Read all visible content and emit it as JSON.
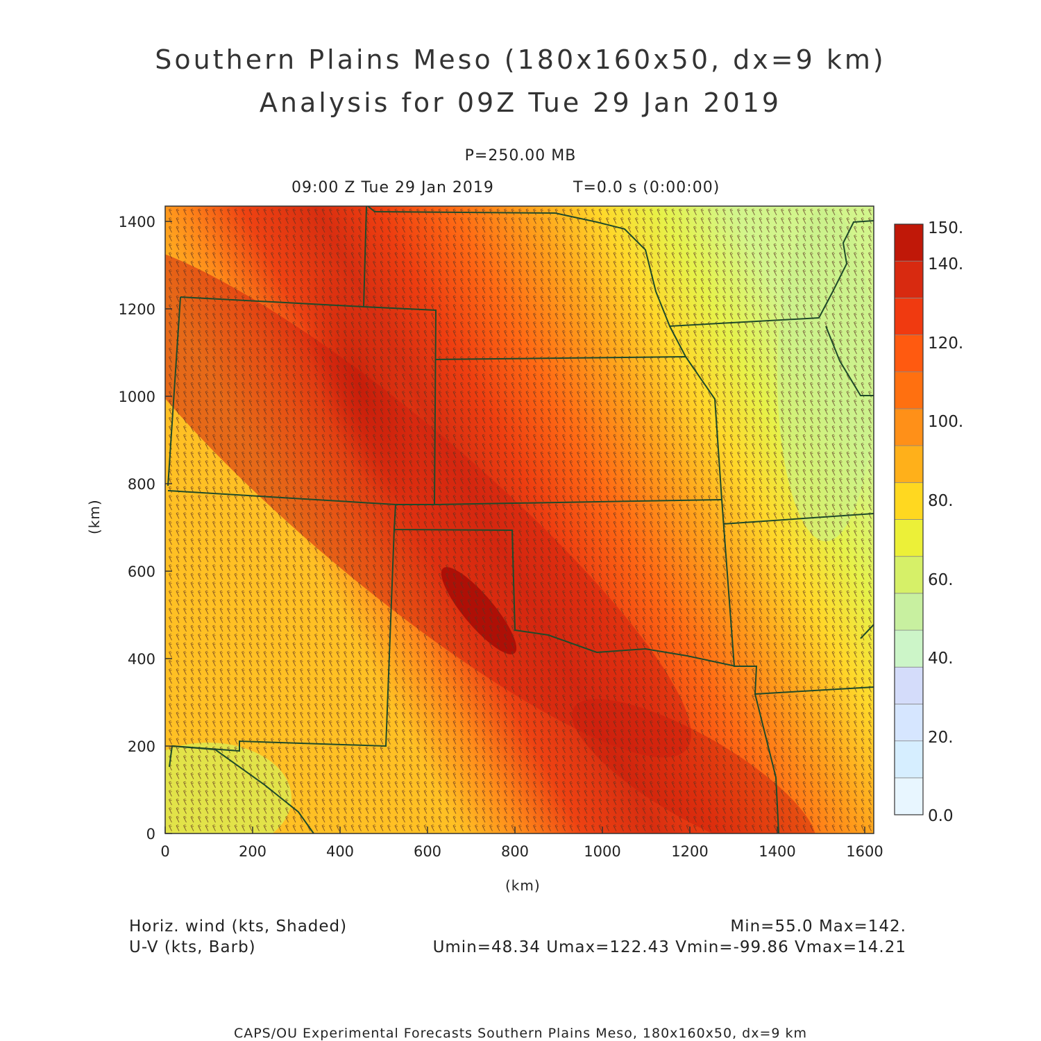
{
  "title": {
    "line1": "Southern Plains Meso (180x160x50, dx=9 km)",
    "line2": "Analysis for 09Z Tue 29 Jan 2019"
  },
  "subtitle": {
    "level": "P=250.00 MB",
    "valid_time": "09:00 Z Tue 29 Jan 2019",
    "time_step": "T=0.0 s (0:00:00)"
  },
  "axes": {
    "x_label": "(km)",
    "y_label": "(km)",
    "x_ticks": [
      "0",
      "200",
      "400",
      "600",
      "800",
      "1000",
      "1200",
      "1400",
      "1600"
    ],
    "y_ticks": [
      "0",
      "200",
      "400",
      "600",
      "800",
      "1000",
      "1200",
      "1400"
    ]
  },
  "colorbar": {
    "labels": [
      "0.0",
      "20.",
      "40.",
      "60.",
      "80.",
      "100.",
      "120.",
      "140.",
      "150."
    ],
    "colors": [
      "#e8f6ff",
      "#d6eeff",
      "#d6e6ff",
      "#d4dcfa",
      "#ccf5c8",
      "#c8f0a0",
      "#d6f068",
      "#ecf038",
      "#ffd820",
      "#ffb01a",
      "#ff9018",
      "#ff7010",
      "#ff5a10",
      "#f03a10",
      "#d82a10",
      "#c01808"
    ]
  },
  "legend": {
    "field1": "Horiz. wind (kts, Shaded)",
    "field2": "U-V (kts, Barb)",
    "minmax": "Min=55.0 Max=142.",
    "uv_stats": "Umin=48.34 Umax=122.43 Vmin=-99.86 Vmax=14.21"
  },
  "footer": "CAPS/OU Experimental Forecasts  Southern Plains Meso, 180x160x50, dx=9 km",
  "map": {
    "domain_x_km": [
      0,
      1620
    ],
    "domain_y_km": [
      0,
      1440
    ]
  }
}
